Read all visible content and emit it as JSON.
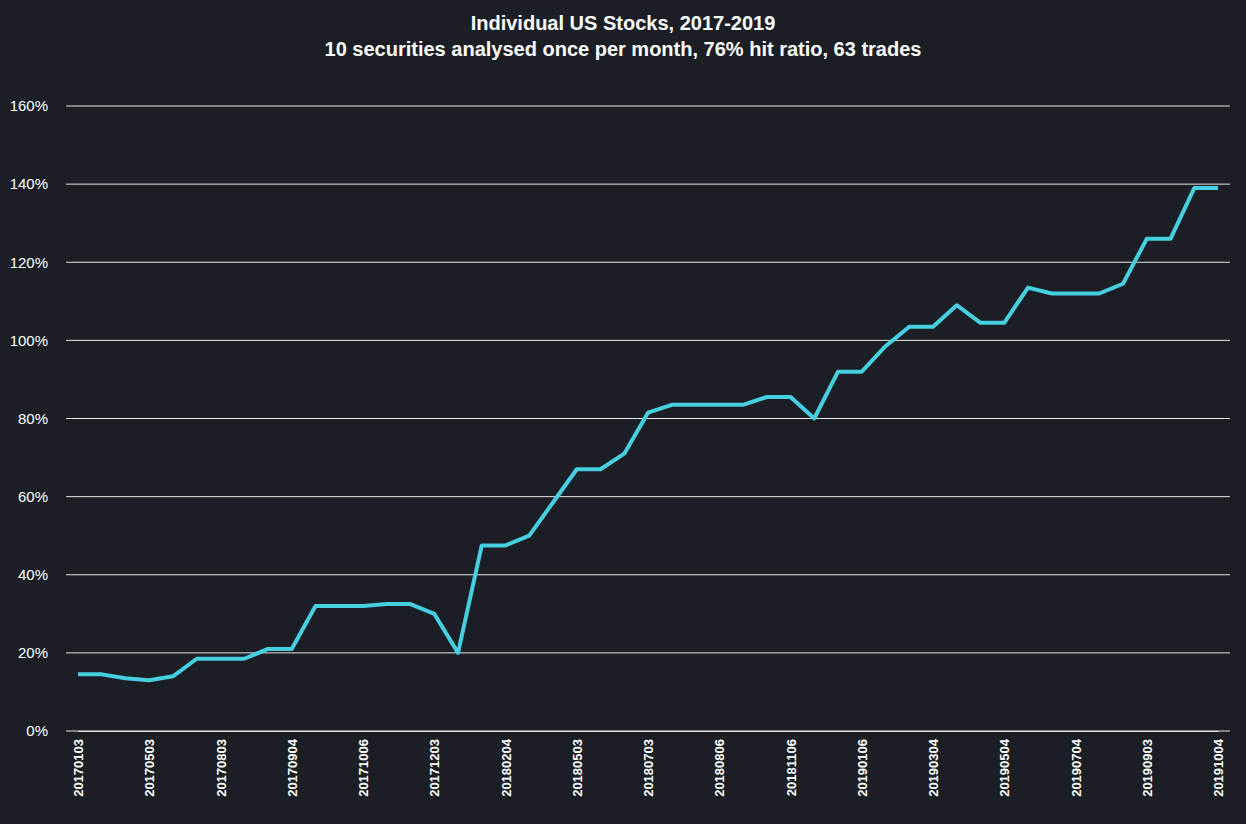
{
  "chart_data": {
    "type": "line",
    "title": "Individual US Stocks, 2017-2019",
    "subtitle": "10 securities analysed once per month, 76% hit ratio, 63 trades",
    "categories": [
      "20170103",
      null,
      null,
      "20170503",
      null,
      null,
      "20170803",
      null,
      null,
      "20170904",
      null,
      null,
      "20171006",
      null,
      null,
      "20171203",
      null,
      null,
      "20180204",
      null,
      null,
      "20180503",
      null,
      null,
      "20180703",
      null,
      null,
      "20180806",
      null,
      null,
      "20181106",
      null,
      null,
      "20190106",
      null,
      null,
      "20190304",
      null,
      null,
      "20190504",
      null,
      null,
      "20190704",
      null,
      null,
      "20190903",
      null,
      null,
      "20191004"
    ],
    "values": [
      14.5,
      14.5,
      13.5,
      13,
      14,
      18.5,
      18.5,
      18.5,
      21,
      21,
      32,
      32,
      32,
      32.5,
      32.5,
      30,
      20,
      47.5,
      47.5,
      50,
      58.5,
      67,
      67,
      71,
      81.5,
      83.5,
      83.5,
      83.5,
      83.5,
      85.5,
      85.5,
      80,
      92,
      92,
      98.5,
      103.5,
      103.5,
      109,
      104.5,
      104.5,
      113.5,
      112,
      112,
      112,
      114.5,
      126,
      126,
      139,
      139
    ],
    "color": "#45cfe0",
    "ylim": [
      0,
      160
    ],
    "yticks": [
      {
        "value": 0,
        "label": "0%"
      },
      {
        "value": 20,
        "label": "20%"
      },
      {
        "value": 40,
        "label": "40%"
      },
      {
        "value": 60,
        "label": "60%"
      },
      {
        "value": 80,
        "label": "80%"
      },
      {
        "value": 100,
        "label": "100%"
      },
      {
        "value": 120,
        "label": "120%"
      },
      {
        "value": 140,
        "label": "140%"
      },
      {
        "value": 160,
        "label": "160%"
      }
    ],
    "grid": true
  }
}
